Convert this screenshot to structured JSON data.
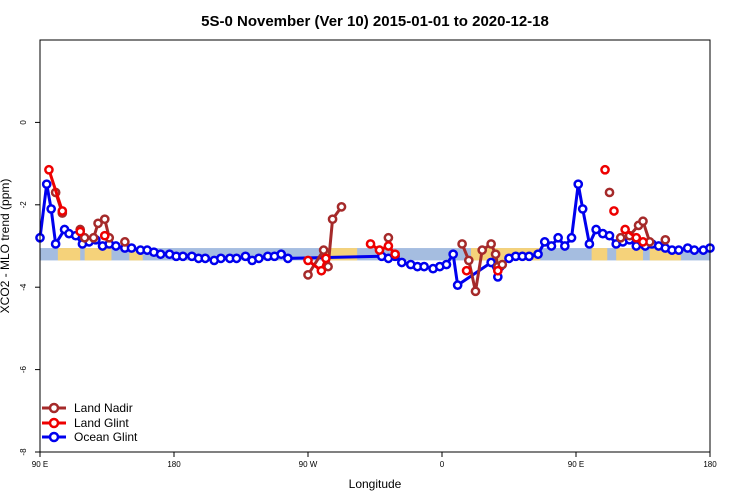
{
  "chart_data": {
    "type": "line",
    "title": "5S-0 November (Ver 10)   2015-01-01 to 2020-12-18",
    "xlabel": "Longitude",
    "ylabel": "XCO2 - MLO trend (ppm)",
    "xlim": [
      -90,
      210
    ],
    "ylim": [
      -8,
      2
    ],
    "xticks": [
      {
        "value": -90,
        "label": "90 E"
      },
      {
        "value": -30,
        "label": "180"
      },
      {
        "value": 30,
        "label": "90 W"
      },
      {
        "value": 90,
        "label": "0"
      },
      {
        "value": 150,
        "label": "90 E"
      },
      {
        "value": 210,
        "label": "180"
      }
    ],
    "yticks": [
      0,
      -2,
      -4,
      -6,
      -8
    ],
    "legend_position": "bottom-left",
    "band": {
      "y_low": -3.35,
      "y_high": -3.05,
      "ocean_color": "#a5bde0",
      "land_color": "#f5d27a",
      "land_ranges": [
        [
          -82,
          -72
        ],
        [
          -70,
          -58
        ],
        [
          -50,
          -44
        ],
        [
          37,
          52
        ],
        [
          103,
          115
        ],
        [
          115,
          134
        ],
        [
          157,
          164
        ],
        [
          168,
          180
        ],
        [
          183,
          197
        ]
      ]
    },
    "series": [
      {
        "name": "Land Nadir",
        "color": "#a52a2a",
        "segments": [
          [
            [
              -83,
              -1.7
            ],
            [
              -80,
              -2.2
            ]
          ],
          [
            [
              -72,
              -2.6
            ],
            [
              -70,
              -2.8
            ],
            [
              -66,
              -2.8
            ],
            [
              -64,
              -2.45
            ],
            [
              -61,
              -2.35
            ],
            [
              -59,
              -2.8
            ]
          ],
          [
            [
              -52,
              -2.9
            ]
          ],
          [
            [
              30,
              -3.7
            ],
            [
              37,
              -3.1
            ],
            [
              39,
              -3.5
            ],
            [
              41,
              -2.35
            ],
            [
              45,
              -2.05
            ]
          ],
          [
            [
              66,
              -2.8
            ]
          ],
          [
            [
              99,
              -2.95
            ],
            [
              102,
              -3.35
            ],
            [
              105,
              -4.1
            ],
            [
              108,
              -3.1
            ],
            [
              112,
              -2.95
            ],
            [
              114,
              -3.2
            ],
            [
              115,
              -3.5
            ],
            [
              117,
              -3.45
            ]
          ],
          [
            [
              165,
              -1.7
            ]
          ],
          [
            [
              170,
              -2.8
            ],
            [
              174,
              -2.75
            ],
            [
              178,
              -2.5
            ],
            [
              180,
              -2.4
            ],
            [
              183,
              -2.9
            ]
          ],
          [
            [
              190,
              -2.85
            ]
          ]
        ]
      },
      {
        "name": "Land Glint",
        "color": "#ee0000",
        "segments": [
          [
            [
              -86,
              -1.15
            ],
            [
              -80,
              -2.15
            ]
          ],
          [
            [
              -72,
              -2.65
            ]
          ],
          [
            [
              -61,
              -2.75
            ]
          ],
          [
            [
              30,
              -3.35
            ],
            [
              36,
              -3.6
            ],
            [
              38,
              -3.3
            ]
          ],
          [
            [
              58,
              -2.95
            ],
            [
              62,
              -3.1
            ],
            [
              66,
              -3.0
            ],
            [
              69,
              -3.2
            ]
          ],
          [
            [
              101,
              -3.6
            ]
          ],
          [
            [
              115,
              -3.6
            ]
          ],
          [
            [
              163,
              -1.15
            ]
          ],
          [
            [
              167,
              -2.15
            ]
          ],
          [
            [
              172,
              -2.6
            ],
            [
              177,
              -2.8
            ],
            [
              180,
              -2.9
            ]
          ]
        ]
      },
      {
        "name": "Ocean Glint",
        "color": "#0000ee",
        "points": [
          [
            -90,
            -2.8
          ],
          [
            -87,
            -1.5
          ],
          [
            -85,
            -2.1
          ],
          [
            -83,
            -2.95
          ],
          [
            -79,
            -2.6
          ],
          [
            -77,
            -2.7
          ],
          [
            -74,
            -2.75
          ],
          [
            -71,
            -2.95
          ],
          [
            -68,
            -2.9
          ],
          [
            -65,
            -2.85
          ],
          [
            -62,
            -3.0
          ],
          [
            -59,
            -2.95
          ],
          [
            -56,
            -3.0
          ],
          [
            -52,
            -3.05
          ],
          [
            -49,
            -3.05
          ],
          [
            -45,
            -3.1
          ],
          [
            -42,
            -3.1
          ],
          [
            -39,
            -3.15
          ],
          [
            -36,
            -3.2
          ],
          [
            -32,
            -3.2
          ],
          [
            -29,
            -3.25
          ],
          [
            -26,
            -3.25
          ],
          [
            -22,
            -3.25
          ],
          [
            -19,
            -3.3
          ],
          [
            -16,
            -3.3
          ],
          [
            -12,
            -3.35
          ],
          [
            -9,
            -3.3
          ],
          [
            -5,
            -3.3
          ],
          [
            -2,
            -3.3
          ],
          [
            2,
            -3.25
          ],
          [
            5,
            -3.35
          ],
          [
            8,
            -3.3
          ],
          [
            12,
            -3.25
          ],
          [
            15,
            -3.25
          ],
          [
            18,
            -3.2
          ],
          [
            21,
            -3.3
          ],
          [
            63,
            -3.25
          ],
          [
            66,
            -3.3
          ],
          [
            69,
            -3.25
          ],
          [
            72,
            -3.4
          ],
          [
            76,
            -3.45
          ],
          [
            79,
            -3.5
          ],
          [
            82,
            -3.5
          ],
          [
            86,
            -3.55
          ],
          [
            89,
            -3.5
          ],
          [
            92,
            -3.45
          ],
          [
            95,
            -3.2
          ],
          [
            97,
            -3.95
          ],
          [
            112,
            -3.4
          ],
          [
            115,
            -3.75
          ],
          [
            116,
            -3.5
          ],
          [
            120,
            -3.3
          ],
          [
            123,
            -3.25
          ],
          [
            126,
            -3.25
          ],
          [
            129,
            -3.25
          ],
          [
            133,
            -3.2
          ],
          [
            136,
            -2.9
          ],
          [
            139,
            -3.0
          ],
          [
            142,
            -2.8
          ],
          [
            145,
            -3.0
          ],
          [
            148,
            -2.8
          ],
          [
            151,
            -1.5
          ],
          [
            153,
            -2.1
          ],
          [
            156,
            -2.95
          ],
          [
            159,
            -2.6
          ],
          [
            162,
            -2.7
          ],
          [
            165,
            -2.75
          ],
          [
            168,
            -2.95
          ],
          [
            171,
            -2.9
          ],
          [
            174,
            -2.85
          ],
          [
            177,
            -3.0
          ],
          [
            181,
            -3.0
          ],
          [
            184,
            -2.95
          ],
          [
            187,
            -3.0
          ],
          [
            190,
            -3.05
          ],
          [
            193,
            -3.1
          ],
          [
            196,
            -3.1
          ],
          [
            200,
            -3.05
          ],
          [
            203,
            -3.1
          ],
          [
            207,
            -3.1
          ],
          [
            210,
            -3.05
          ]
        ]
      }
    ]
  }
}
